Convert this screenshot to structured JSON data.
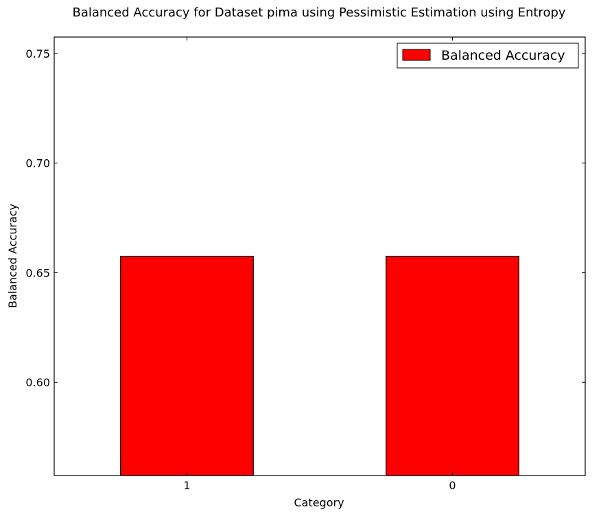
{
  "chart_data": {
    "type": "bar",
    "title": "Balanced Accuracy for Dataset pima using Pessimistic Estimation using Entropy",
    "xlabel": "Category",
    "ylabel": "Balanced Accuracy",
    "categories": [
      "1",
      "0"
    ],
    "series": [
      {
        "name": "Balanced Accuracy",
        "values": [
          0.6575,
          0.6575
        ],
        "color": "#ff0000"
      }
    ],
    "ylim": [
      0.5575,
      0.7575
    ],
    "yticks": [
      "0.60",
      "0.65",
      "0.70",
      "0.75"
    ],
    "grid": false,
    "legend_position": "top-right"
  }
}
